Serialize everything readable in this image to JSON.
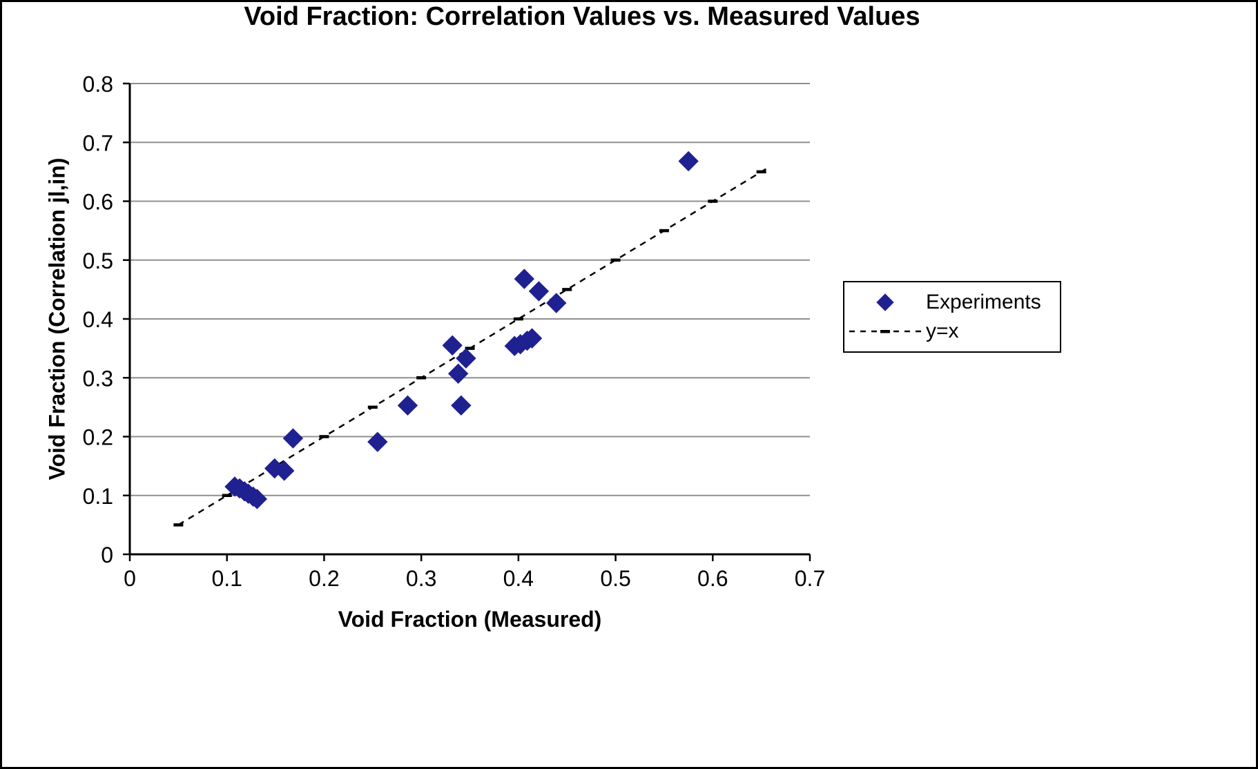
{
  "chart_data": {
    "type": "scatter",
    "title": "Void Fraction: Correlation Values vs. Measured Values",
    "xlabel": "Void Fraction (Measured)",
    "ylabel": "Void Fraction (Correlation jl,in)",
    "xlim": [
      0,
      0.7
    ],
    "ylim": [
      0,
      0.8
    ],
    "xticks": [
      0,
      0.1,
      0.2,
      0.3,
      0.4,
      0.5,
      0.6,
      0.7
    ],
    "yticks": [
      0,
      0.1,
      0.2,
      0.3,
      0.4,
      0.5,
      0.6,
      0.7,
      0.8
    ],
    "grid": "horizontal",
    "gridline_color": "#8f8f8f",
    "legend_position": "center-right",
    "series": [
      {
        "name": "Experiments",
        "type": "scatter",
        "marker": "diamond",
        "color": "#1F2191",
        "points": [
          [
            0.108,
            0.115
          ],
          [
            0.113,
            0.112
          ],
          [
            0.118,
            0.107
          ],
          [
            0.122,
            0.103
          ],
          [
            0.127,
            0.098
          ],
          [
            0.131,
            0.094
          ],
          [
            0.149,
            0.146
          ],
          [
            0.159,
            0.142
          ],
          [
            0.168,
            0.197
          ],
          [
            0.255,
            0.191
          ],
          [
            0.286,
            0.253
          ],
          [
            0.332,
            0.355
          ],
          [
            0.338,
            0.307
          ],
          [
            0.341,
            0.253
          ],
          [
            0.346,
            0.333
          ],
          [
            0.396,
            0.354
          ],
          [
            0.402,
            0.357
          ],
          [
            0.409,
            0.363
          ],
          [
            0.414,
            0.367
          ],
          [
            0.406,
            0.468
          ],
          [
            0.421,
            0.447
          ],
          [
            0.439,
            0.427
          ],
          [
            0.575,
            0.668
          ]
        ]
      },
      {
        "name": "y=x",
        "type": "line",
        "style": "dashed-with-dash-markers",
        "color": "#000000",
        "x_range": [
          0.05,
          0.655
        ],
        "marker_xs": [
          0.05,
          0.1,
          0.15,
          0.2,
          0.25,
          0.3,
          0.35,
          0.4,
          0.45,
          0.5,
          0.55,
          0.6,
          0.65
        ]
      }
    ]
  }
}
